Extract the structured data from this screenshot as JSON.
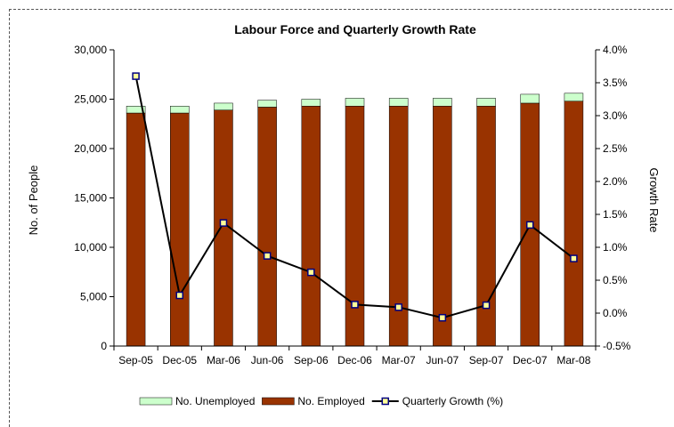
{
  "chart_data": {
    "type": "bar",
    "title": "Labour Force and Quarterly Growth Rate",
    "categories": [
      "Sep-05",
      "Dec-05",
      "Mar-06",
      "Jun-06",
      "Sep-06",
      "Dec-06",
      "Mar-07",
      "Jun-07",
      "Sep-07",
      "Dec-07",
      "Mar-08"
    ],
    "series": [
      {
        "name": "No. Employed",
        "type": "bar",
        "axis": "left",
        "color": "#993300",
        "values": [
          23600,
          23600,
          23900,
          24200,
          24300,
          24300,
          24300,
          24300,
          24300,
          24600,
          24800
        ]
      },
      {
        "name": "No. Unemployed",
        "type": "bar",
        "axis": "left",
        "stacked_on": "No. Employed",
        "color": "#CCFFCC",
        "values": [
          700,
          700,
          700,
          700,
          700,
          800,
          800,
          800,
          800,
          900,
          800
        ]
      },
      {
        "name": "Quarterly Growth (%)",
        "type": "line",
        "axis": "right",
        "color": "#000000",
        "marker_color": "#FFFF99",
        "marker_border": "#000080",
        "values": [
          3.6,
          0.27,
          1.37,
          0.87,
          0.62,
          0.13,
          0.09,
          -0.07,
          0.12,
          1.34,
          0.83
        ]
      }
    ],
    "ylabel": "No. of People",
    "ylim": [
      0,
      30000
    ],
    "yticks": [
      "0",
      "5,000",
      "10,000",
      "15,000",
      "20,000",
      "25,000",
      "30,000"
    ],
    "y2label": "Growth Rate",
    "y2lim": [
      -0.5,
      4.0
    ],
    "y2ticks": [
      "-0.5%",
      "0.0%",
      "0.5%",
      "1.0%",
      "1.5%",
      "2.0%",
      "2.5%",
      "3.0%",
      "3.5%",
      "4.0%"
    ],
    "legend": [
      "No. Unemployed",
      "No. Employed",
      "Quarterly Growth (%)"
    ],
    "legend_position": "bottom",
    "grid": false
  }
}
